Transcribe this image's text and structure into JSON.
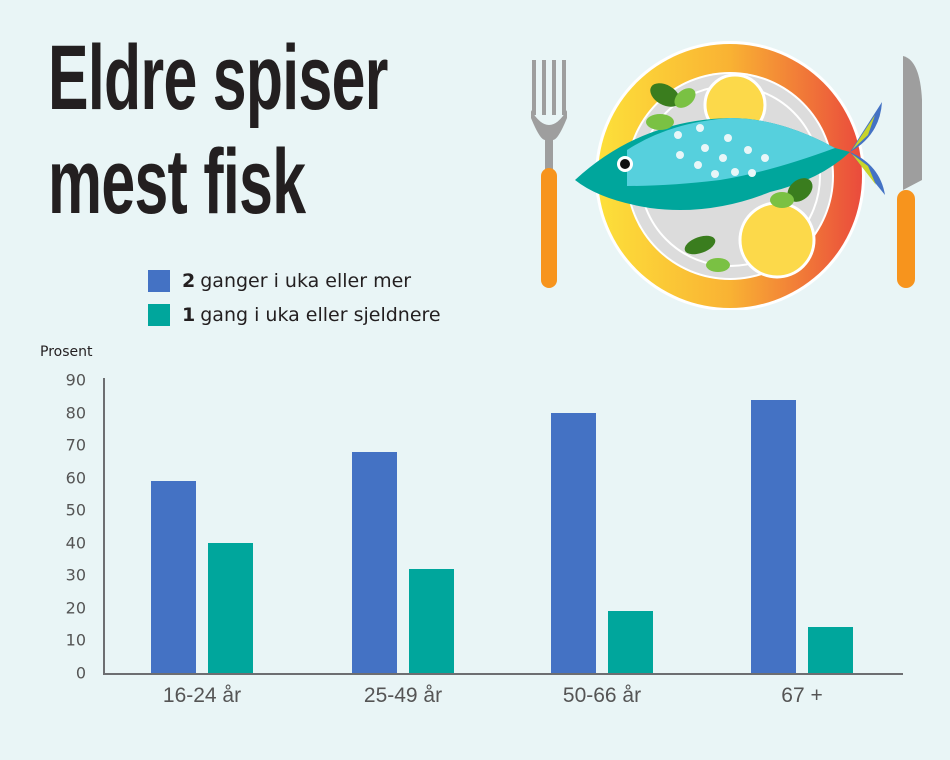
{
  "title": {
    "line1": "Eldre spiser",
    "line2": "mest fisk"
  },
  "legend": [
    {
      "bold": "2",
      "text": "ganger i uka eller mer",
      "color": "#4472c4"
    },
    {
      "bold": "1",
      "text": "gang i uka eller sjeldnere",
      "color": "#00a69c"
    }
  ],
  "illustration": {
    "icon": "fish-on-plate-with-fork-and-knife-icon"
  },
  "chart_data": {
    "type": "bar",
    "title": "Eldre spiser mest fisk",
    "xlabel": "",
    "ylabel": "Prosent",
    "ylim": [
      0,
      90
    ],
    "yticks": [
      "0",
      "10",
      "20",
      "30",
      "40",
      "50",
      "60",
      "70",
      "80",
      "90"
    ],
    "grid": false,
    "legend_position": "top-left",
    "categories": [
      "16-24 år",
      "25-49 år",
      "50-66 år",
      "67 +"
    ],
    "series": [
      {
        "name": "2 ganger i uka eller mer",
        "color": "#4472c4",
        "values": [
          59,
          68,
          80,
          84
        ]
      },
      {
        "name": "1 gang i uka eller sjeldnere",
        "color": "#00a69c",
        "values": [
          40,
          32,
          19,
          14
        ]
      }
    ]
  }
}
